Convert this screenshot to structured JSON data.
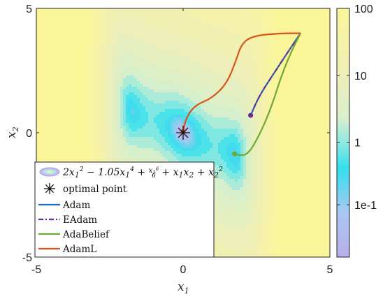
{
  "chart_data": {
    "type": "contour",
    "title": "",
    "xlabel": "x",
    "xlabel_sub": "1",
    "ylabel": "x",
    "ylabel_sub": "2",
    "xlim": [
      -5,
      5
    ],
    "ylim": [
      -5,
      5
    ],
    "xticks": [
      "-5",
      "0",
      "5"
    ],
    "yticks": [
      "-5",
      "0",
      "5"
    ],
    "grid": false,
    "legend_position": "bottom-left",
    "surface": {
      "function": "2x1^2 - 1.05x1^4 + x1^6/6 + x1x2 + x2^2",
      "legend_label": "2x_1^2 - 1.05x_1^4 + x_1^6/6 + x_1x_2 + x_2^2",
      "scale": "log"
    },
    "colorbar": {
      "scale": "log",
      "tick_labels": [
        "100",
        "10",
        "1",
        "1e-1"
      ],
      "tick_values": [
        100,
        10,
        1,
        0.1
      ]
    },
    "optimal_point": {
      "label": "optimal point",
      "x": 0,
      "y": 0,
      "color": "#111111"
    },
    "series": [
      {
        "name": "Adam",
        "color": "#1f6fb8",
        "dash": "solid",
        "points": [
          [
            4.0,
            4.0
          ],
          [
            3.6,
            3.3
          ],
          [
            3.1,
            2.4
          ],
          [
            2.6,
            1.5
          ],
          [
            2.3,
            0.7
          ]
        ]
      },
      {
        "name": "EAdam",
        "color": "#6a2c91",
        "dash": "dashdot",
        "points": [
          [
            4.0,
            4.0
          ],
          [
            3.6,
            3.3
          ],
          [
            3.1,
            2.4
          ],
          [
            2.6,
            1.5
          ],
          [
            2.3,
            0.7
          ]
        ]
      },
      {
        "name": "AdaBelief",
        "color": "#6fa832",
        "dash": "solid",
        "points": [
          [
            4.0,
            4.0
          ],
          [
            3.7,
            3.3
          ],
          [
            3.35,
            2.3
          ],
          [
            3.0,
            1.0
          ],
          [
            2.6,
            -0.1
          ],
          [
            2.2,
            -0.9
          ],
          [
            1.85,
            -0.9
          ],
          [
            1.75,
            -0.85
          ]
        ]
      },
      {
        "name": "AdamL",
        "color": "#d95319",
        "dash": "solid",
        "points": [
          [
            4.0,
            4.0
          ],
          [
            3.3,
            4.0
          ],
          [
            2.4,
            3.9
          ],
          [
            2.0,
            3.6
          ],
          [
            1.8,
            2.9
          ],
          [
            1.5,
            2.0
          ],
          [
            1.0,
            1.4
          ],
          [
            0.4,
            1.1
          ],
          [
            0.1,
            0.6
          ],
          [
            0.0,
            0.05
          ]
        ]
      }
    ]
  }
}
